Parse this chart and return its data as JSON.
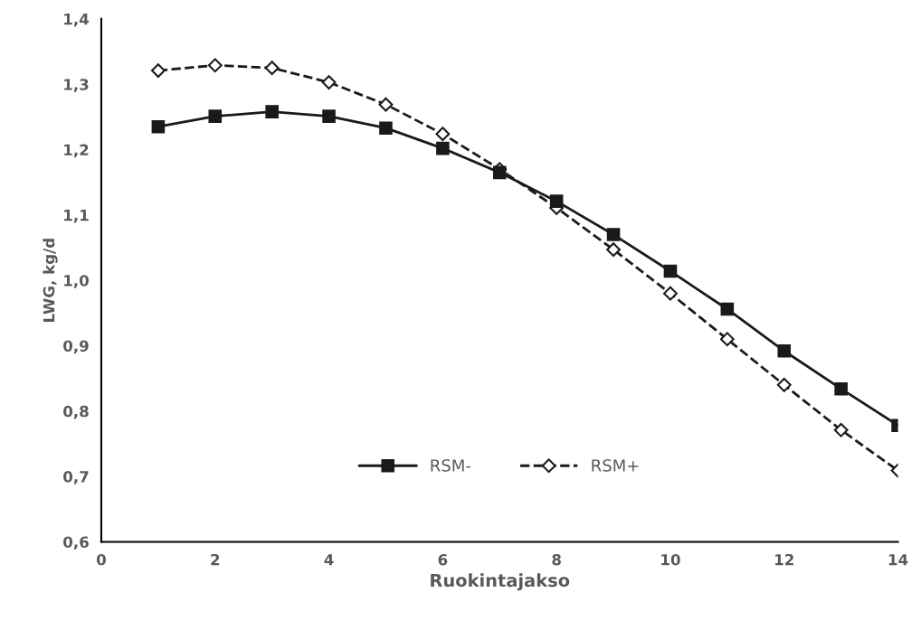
{
  "chart_data": {
    "type": "line",
    "xlabel": "Ruokintajakso",
    "ylabel": "LWG, kg/d",
    "x": [
      1,
      2,
      3,
      4,
      5,
      6,
      7,
      8,
      9,
      10,
      11,
      12,
      13,
      14
    ],
    "series": [
      {
        "name": "RSM-",
        "color": "#1a1a1a",
        "marker": "square",
        "line_style": "solid",
        "values": [
          1.235,
          1.251,
          1.258,
          1.251,
          1.233,
          1.202,
          1.165,
          1.121,
          1.07,
          1.014,
          0.956,
          0.892,
          0.834,
          0.778
        ]
      },
      {
        "name": "RSM+",
        "color": "#1a1a1a",
        "marker": "diamond",
        "line_style": "dashed",
        "values": [
          1.321,
          1.329,
          1.325,
          1.303,
          1.269,
          1.224,
          1.17,
          1.111,
          1.047,
          0.98,
          0.91,
          0.84,
          0.771,
          0.709
        ]
      }
    ],
    "xlim": [
      0,
      14
    ],
    "xticks": [
      0,
      2,
      4,
      6,
      8,
      10,
      12,
      14
    ],
    "ylim": [
      0.6,
      1.4
    ],
    "yticks": [
      {
        "value": 0.6,
        "label": "0,6"
      },
      {
        "value": 0.7,
        "label": "0,7"
      },
      {
        "value": 0.8,
        "label": "0,8"
      },
      {
        "value": 0.9,
        "label": "0,9"
      },
      {
        "value": 1.0,
        "label": "1,0"
      },
      {
        "value": 1.1,
        "label": "1,1"
      },
      {
        "value": 1.2,
        "label": "1,2"
      },
      {
        "value": 1.3,
        "label": "1,3"
      },
      {
        "value": 1.4,
        "label": "1,4"
      }
    ],
    "grid": false,
    "legend": "bottom"
  }
}
